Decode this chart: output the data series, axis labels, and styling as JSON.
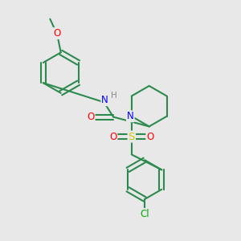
{
  "bg_color": "#e8e8e8",
  "bond_color": "#2d8a4e",
  "N_color": "#0000ff",
  "O_color": "#ff0000",
  "S_color": "#cccc00",
  "Cl_color": "#00aa00",
  "H_color": "#888888",
  "line_width": 1.5,
  "font_size": 8.5,
  "figsize": [
    3.0,
    3.0
  ],
  "dpi": 100,
  "xlim": [
    0,
    10
  ],
  "ylim": [
    0,
    10
  ]
}
